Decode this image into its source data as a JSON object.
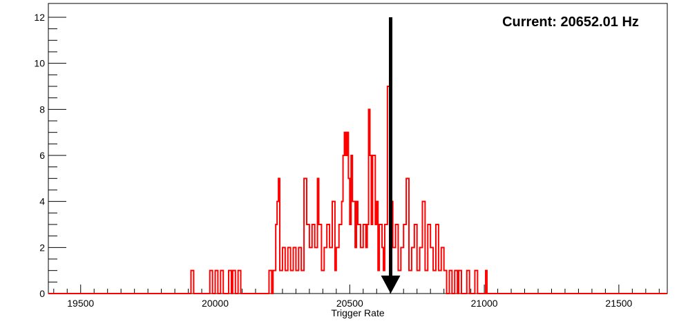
{
  "chart_data": {
    "type": "histogram",
    "title": "",
    "xlabel": "Trigger Rate",
    "ylabel": "",
    "xlim": [
      19380,
      21680
    ],
    "ylim": [
      0,
      12.6
    ],
    "x_ticks": [
      19500,
      20000,
      20500,
      21000,
      21500
    ],
    "y_ticks": [
      0,
      2,
      4,
      6,
      8,
      10,
      12
    ],
    "grid": false,
    "legend": "none",
    "series": [
      {
        "color": "#ff0000",
        "bin_edges_and_counts": [
          [
            19380,
            19910,
            0
          ],
          [
            19910,
            19920,
            1
          ],
          [
            19920,
            19980,
            0
          ],
          [
            19980,
            19990,
            1
          ],
          [
            19990,
            20000,
            0
          ],
          [
            20000,
            20010,
            1
          ],
          [
            20010,
            20020,
            0
          ],
          [
            20020,
            20030,
            1
          ],
          [
            20030,
            20050,
            0
          ],
          [
            20050,
            20060,
            1
          ],
          [
            20060,
            20065,
            0
          ],
          [
            20065,
            20075,
            1
          ],
          [
            20075,
            20085,
            0
          ],
          [
            20085,
            20095,
            1
          ],
          [
            20095,
            20200,
            0
          ],
          [
            20200,
            20210,
            1
          ],
          [
            20210,
            20215,
            0
          ],
          [
            20215,
            20225,
            1
          ],
          [
            20225,
            20230,
            3
          ],
          [
            20230,
            20235,
            4
          ],
          [
            20235,
            20240,
            5
          ],
          [
            20240,
            20250,
            1
          ],
          [
            20250,
            20260,
            2
          ],
          [
            20260,
            20270,
            1
          ],
          [
            20270,
            20280,
            2
          ],
          [
            20280,
            20290,
            1
          ],
          [
            20290,
            20300,
            2
          ],
          [
            20300,
            20310,
            1
          ],
          [
            20310,
            20320,
            2
          ],
          [
            20320,
            20330,
            1
          ],
          [
            20330,
            20340,
            5
          ],
          [
            20340,
            20350,
            3
          ],
          [
            20350,
            20360,
            2
          ],
          [
            20360,
            20370,
            3
          ],
          [
            20370,
            20380,
            2
          ],
          [
            20380,
            20385,
            5
          ],
          [
            20385,
            20395,
            3
          ],
          [
            20395,
            20405,
            1
          ],
          [
            20405,
            20415,
            2
          ],
          [
            20415,
            20425,
            3
          ],
          [
            20425,
            20435,
            2
          ],
          [
            20435,
            20445,
            4
          ],
          [
            20445,
            20450,
            1
          ],
          [
            20450,
            20460,
            2
          ],
          [
            20460,
            20470,
            3
          ],
          [
            20470,
            20475,
            4
          ],
          [
            20475,
            20480,
            6
          ],
          [
            20480,
            20485,
            7
          ],
          [
            20485,
            20490,
            6
          ],
          [
            20490,
            20495,
            7
          ],
          [
            20495,
            20500,
            5
          ],
          [
            20500,
            20505,
            3
          ],
          [
            20505,
            20510,
            6
          ],
          [
            20510,
            20520,
            4
          ],
          [
            20520,
            20525,
            2
          ],
          [
            20525,
            20530,
            4
          ],
          [
            20530,
            20540,
            3
          ],
          [
            20540,
            20550,
            2
          ],
          [
            20550,
            20560,
            3
          ],
          [
            20560,
            20565,
            2
          ],
          [
            20565,
            20570,
            3
          ],
          [
            20570,
            20575,
            8
          ],
          [
            20575,
            20580,
            6
          ],
          [
            20580,
            20585,
            3
          ],
          [
            20585,
            20595,
            6
          ],
          [
            20595,
            20600,
            3
          ],
          [
            20600,
            20605,
            4
          ],
          [
            20605,
            20610,
            1
          ],
          [
            20610,
            20620,
            3
          ],
          [
            20620,
            20625,
            2
          ],
          [
            20625,
            20630,
            1
          ],
          [
            20630,
            20640,
            3
          ],
          [
            20640,
            20650,
            9
          ],
          [
            20650,
            20660,
            4
          ],
          [
            20660,
            20670,
            2
          ],
          [
            20670,
            20680,
            3
          ],
          [
            20680,
            20690,
            1
          ],
          [
            20690,
            20700,
            2
          ],
          [
            20700,
            20710,
            3
          ],
          [
            20710,
            20720,
            5
          ],
          [
            20720,
            20730,
            1
          ],
          [
            20730,
            20740,
            2
          ],
          [
            20740,
            20750,
            3
          ],
          [
            20750,
            20760,
            1
          ],
          [
            20760,
            20770,
            2
          ],
          [
            20770,
            20780,
            4
          ],
          [
            20780,
            20790,
            1
          ],
          [
            20790,
            20800,
            3
          ],
          [
            20800,
            20810,
            2
          ],
          [
            20810,
            20820,
            1
          ],
          [
            20820,
            20830,
            3
          ],
          [
            20830,
            20840,
            1
          ],
          [
            20840,
            20850,
            2
          ],
          [
            20850,
            20860,
            1
          ],
          [
            20860,
            20870,
            0
          ],
          [
            20870,
            20880,
            1
          ],
          [
            20880,
            20890,
            0
          ],
          [
            20890,
            20900,
            1
          ],
          [
            20900,
            20905,
            0
          ],
          [
            20905,
            20915,
            1
          ],
          [
            20915,
            20935,
            0
          ],
          [
            20935,
            20945,
            1
          ],
          [
            20945,
            20965,
            0
          ],
          [
            20965,
            20975,
            1
          ],
          [
            20975,
            21005,
            0
          ],
          [
            21005,
            21010,
            1
          ],
          [
            21010,
            21680,
            0
          ]
        ]
      }
    ],
    "annotations": [
      {
        "text": "Current: 20652.01 Hz",
        "arrow_x": 20652.01,
        "arrow_from_y": 12,
        "arrow_to_y": 0,
        "arrow_color": "#000000"
      }
    ]
  }
}
